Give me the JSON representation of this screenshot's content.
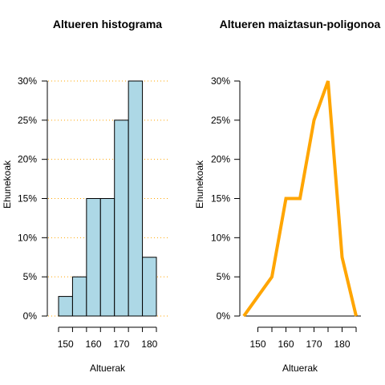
{
  "chart_data": [
    {
      "type": "bar",
      "title": "Altueren histograma",
      "xlabel": "Altuerak",
      "ylabel": "Ehunekoak",
      "bins": [
        {
          "from": 147.5,
          "to": 152.5,
          "value": 2.5
        },
        {
          "from": 152.5,
          "to": 157.5,
          "value": 5
        },
        {
          "from": 157.5,
          "to": 162.5,
          "value": 15
        },
        {
          "from": 162.5,
          "to": 167.5,
          "value": 15
        },
        {
          "from": 167.5,
          "to": 172.5,
          "value": 25
        },
        {
          "from": 172.5,
          "to": 177.5,
          "value": 30
        },
        {
          "from": 177.5,
          "to": 182.5,
          "value": 7.5
        }
      ],
      "xlim": [
        147.5,
        182.5
      ],
      "ylim": [
        0,
        30
      ],
      "x_ticks": [
        150,
        160,
        170,
        180
      ],
      "x_minor_ticks": [
        147.5,
        152.5,
        157.5,
        162.5,
        167.5,
        172.5,
        177.5,
        182.5
      ],
      "y_ticks": [
        0,
        5,
        10,
        15,
        20,
        25,
        30
      ],
      "y_tick_labels": [
        "0%",
        "5%",
        "10%",
        "15%",
        "20%",
        "25%",
        "30%"
      ],
      "grid": "horizontal dotted",
      "colors": {
        "bar_fill": "#add8e6",
        "bar_edge": "#000000",
        "grid": "#ffa500"
      }
    },
    {
      "type": "line",
      "title": "Altueren maiztasun-poligonoa",
      "xlabel": "Altuerak",
      "ylabel": "Ehunekoak",
      "x": [
        145,
        155,
        160,
        165,
        170,
        175,
        180,
        185
      ],
      "y": [
        0,
        5,
        15,
        15,
        25,
        30,
        7.5,
        0
      ],
      "xlim": [
        145,
        185
      ],
      "ylim": [
        0,
        30
      ],
      "x_ticks": [
        150,
        160,
        170,
        180
      ],
      "x_minor_ticks": [
        150,
        155,
        160,
        165,
        170,
        175,
        180,
        185
      ],
      "y_ticks": [
        0,
        5,
        10,
        15,
        20,
        25,
        30
      ],
      "y_tick_labels": [
        "0%",
        "5%",
        "10%",
        "15%",
        "20%",
        "25%",
        "30%"
      ],
      "grid": false,
      "colors": {
        "line": "#ffa500",
        "baseline": "#000000"
      }
    }
  ]
}
